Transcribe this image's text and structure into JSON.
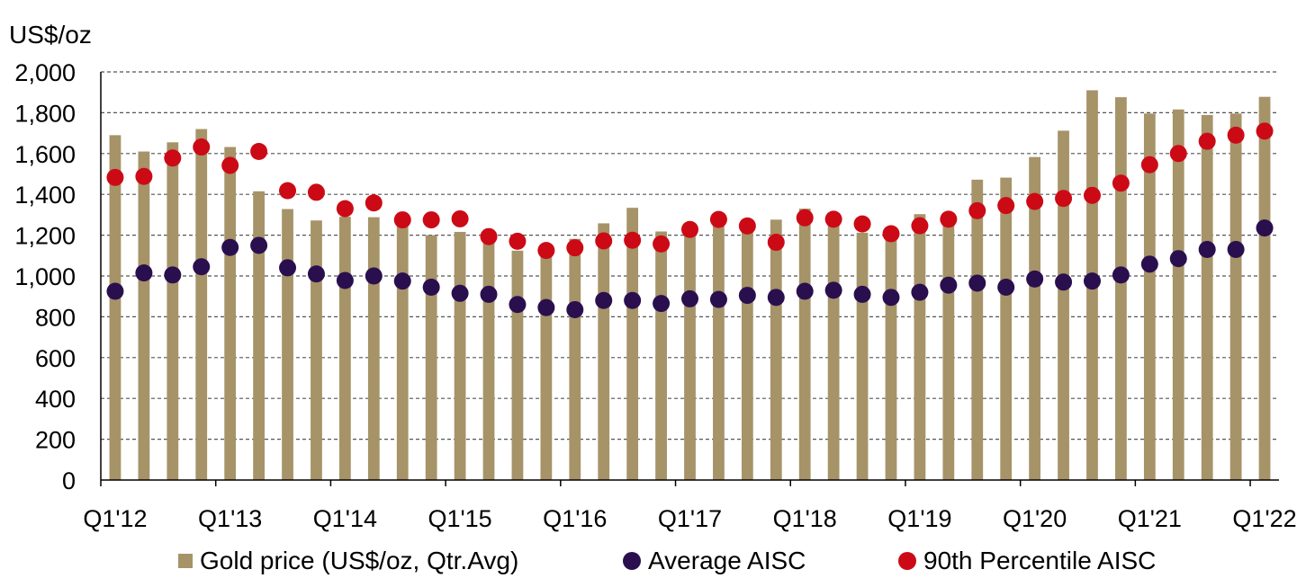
{
  "chart_data": {
    "type": "bar",
    "unit_label": "US$/oz",
    "ylim": [
      0,
      2000
    ],
    "y_ticks": [
      "0",
      "200",
      "400",
      "600",
      "800",
      "1,000",
      "1,200",
      "1,400",
      "1,600",
      "1,800",
      "2,000"
    ],
    "grid": true,
    "legend_position": "bottom",
    "categories": [
      "Q1'12",
      "Q2'12",
      "Q3'12",
      "Q4'12",
      "Q1'13",
      "Q2'13",
      "Q3'13",
      "Q4'13",
      "Q1'14",
      "Q2'14",
      "Q3'14",
      "Q4'14",
      "Q1'15",
      "Q2'15",
      "Q3'15",
      "Q4'15",
      "Q1'16",
      "Q2'16",
      "Q3'16",
      "Q4'16",
      "Q1'17",
      "Q2'17",
      "Q3'17",
      "Q4'17",
      "Q1'18",
      "Q2'18",
      "Q3'18",
      "Q4'18",
      "Q1'19",
      "Q2'19",
      "Q3'19",
      "Q4'19",
      "Q1'20",
      "Q2'20",
      "Q3'20",
      "Q4'20",
      "Q1'21",
      "Q2'21",
      "Q3'21",
      "Q4'21",
      "Q1'22"
    ],
    "x_tick_labels": [
      "Q1'12",
      "Q1'13",
      "Q1'14",
      "Q1'15",
      "Q1'16",
      "Q1'17",
      "Q1'18",
      "Q1'19",
      "Q1'20",
      "Q1'21",
      "Q1'22"
    ],
    "series": [
      {
        "name": "Gold price (US$/oz, Qtr.Avg)",
        "type": "bar",
        "color": "#a69368",
        "values": [
          1690,
          1610,
          1655,
          1720,
          1632,
          1415,
          1328,
          1272,
          1290,
          1288,
          1283,
          1200,
          1216,
          1192,
          1124,
          1106,
          1182,
          1258,
          1334,
          1218,
          1218,
          1256,
          1278,
          1276,
          1330,
          1306,
          1212,
          1230,
          1303,
          1310,
          1472,
          1482,
          1583,
          1712,
          1910,
          1876,
          1796,
          1816,
          1789,
          1796,
          1878
        ]
      },
      {
        "name": "Average AISC",
        "type": "scatter",
        "color": "#2a0f4f",
        "values": [
          925,
          1015,
          1005,
          1045,
          1140,
          1150,
          1040,
          1010,
          978,
          1000,
          975,
          945,
          915,
          910,
          860,
          845,
          835,
          880,
          880,
          865,
          888,
          885,
          905,
          895,
          925,
          930,
          910,
          895,
          920,
          955,
          965,
          945,
          985,
          970,
          975,
          1005,
          1058,
          1085,
          1130,
          1130,
          1235
        ]
      },
      {
        "name": "90th Percentile AISC",
        "type": "scatter",
        "color": "#cc0a16",
        "values": [
          1483,
          1488,
          1578,
          1632,
          1542,
          1610,
          1418,
          1410,
          1330,
          1358,
          1275,
          1275,
          1280,
          1193,
          1170,
          1125,
          1138,
          1172,
          1175,
          1157,
          1228,
          1277,
          1245,
          1165,
          1285,
          1278,
          1255,
          1207,
          1246,
          1278,
          1320,
          1345,
          1365,
          1380,
          1395,
          1455,
          1545,
          1600,
          1660,
          1690,
          1710
        ]
      }
    ]
  }
}
